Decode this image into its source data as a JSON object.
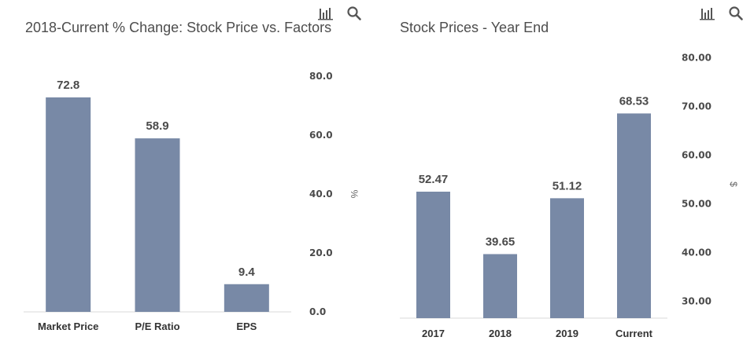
{
  "chart_data": [
    {
      "type": "bar",
      "title": "2018-Current % Change: Stock Price vs. Factors",
      "categories": [
        "Market Price",
        "P/E Ratio",
        "EPS"
      ],
      "values": [
        72.8,
        58.9,
        9.4
      ],
      "data_labels": [
        "72.8",
        "58.9",
        "9.4"
      ],
      "ylabel": "%",
      "ylim": [
        0,
        80
      ],
      "yticks": [
        "0.0",
        "20.0",
        "40.0",
        "60.0",
        "80.0"
      ],
      "ytick_values": [
        0,
        20,
        40,
        60,
        80
      ],
      "axis_side": "right",
      "bar_color": "#7889a6",
      "grid": false
    },
    {
      "type": "bar",
      "title": "Stock Prices - Year End",
      "categories": [
        "2017",
        "2018",
        "2019",
        "Current"
      ],
      "values": [
        52.47,
        39.65,
        51.12,
        68.53
      ],
      "data_labels": [
        "52.47",
        "39.65",
        "51.12",
        "68.53"
      ],
      "ylabel": "$",
      "ylim": [
        26.5,
        81.5
      ],
      "yticks": [
        "30.00",
        "40.00",
        "50.00",
        "60.00",
        "70.00",
        "80.00"
      ],
      "ytick_values": [
        30,
        40,
        50,
        60,
        70,
        80
      ],
      "axis_side": "right",
      "bar_color": "#7889a6",
      "grid": false
    }
  ],
  "toolbar": {
    "chart_icon": "bar-chart-icon",
    "search_icon": "search-icon"
  }
}
